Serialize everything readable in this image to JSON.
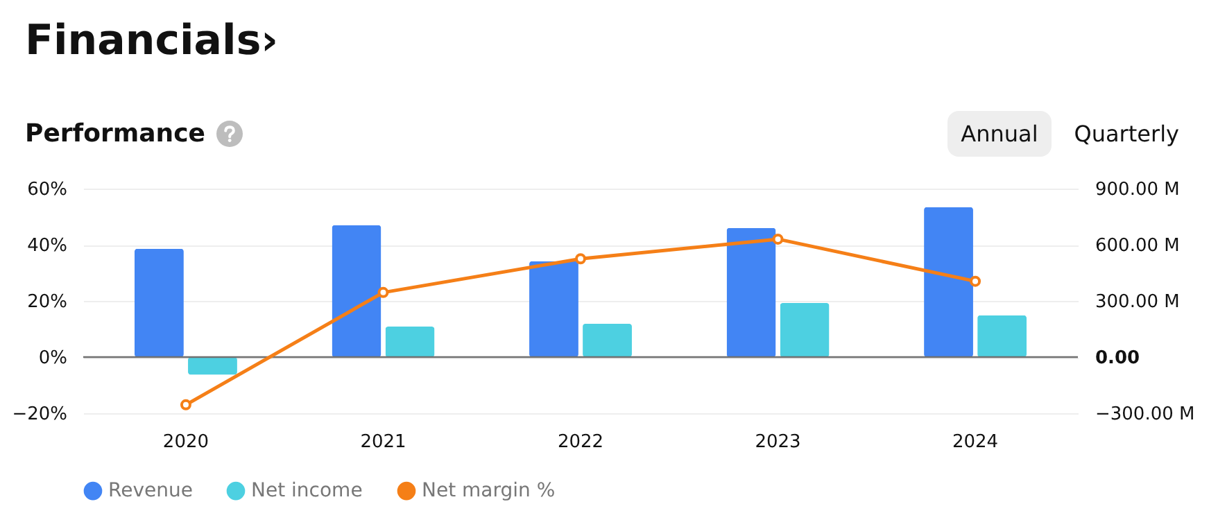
{
  "chart_data": {
    "type": "bar",
    "title": "Financials›",
    "subtitle": "Performance",
    "annotations": [
      "Annual",
      "Quarterly"
    ],
    "categories": [
      "2020",
      "2021",
      "2022",
      "2023",
      "2024"
    ],
    "series": [
      {
        "name": "Revenue",
        "type": "bar",
        "axis": "y2",
        "color": "#4285f4",
        "values": [
          579,
          705,
          512,
          690,
          801
        ]
      },
      {
        "name": "Net income",
        "type": "bar",
        "axis": "y2",
        "color": "#4dd0e1",
        "values": [
          -94,
          163,
          178,
          289,
          223
        ]
      },
      {
        "name": "Net margin %",
        "type": "line",
        "axis": "y",
        "color": "#f57f17",
        "values": [
          -17,
          23,
          35,
          42,
          27
        ]
      }
    ],
    "ylim": [
      -20,
      60
    ],
    "yticks": [
      {
        "value": -20,
        "label": "−20%"
      },
      {
        "value": 0,
        "label": "0%"
      },
      {
        "value": 20,
        "label": "20%"
      },
      {
        "value": 40,
        "label": "40%"
      },
      {
        "value": 60,
        "label": "60%"
      }
    ],
    "y2lim": [
      -300,
      900
    ],
    "y2ticks": [
      {
        "value": -300,
        "label": "−300.00 M"
      },
      {
        "value": 0,
        "label": "0.00"
      },
      {
        "value": 300,
        "label": "300.00 M"
      },
      {
        "value": 600,
        "label": "600.00 M"
      },
      {
        "value": 900,
        "label": "900.00 M"
      }
    ],
    "ref_lines": [
      {
        "axis": "y",
        "value": 0,
        "color": "#707070"
      }
    ],
    "grid": "y",
    "legend": "bottom",
    "marker": "circle"
  }
}
